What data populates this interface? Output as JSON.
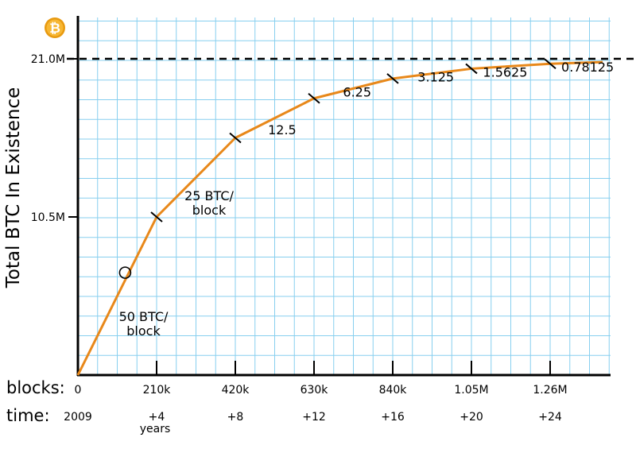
{
  "chart_data": {
    "type": "line",
    "ylabel": "Total BTC In Existence",
    "y_ticks": [
      {
        "value": 10.5,
        "label": "10.5M"
      },
      {
        "value": 21.0,
        "label": "21.0M"
      }
    ],
    "ylim": [
      0,
      22.1
    ],
    "xlim": [
      0,
      1400000
    ],
    "max_supply": 21.0,
    "x_row_label": "blocks:",
    "x_ticks": [
      {
        "value": 0,
        "label": "0"
      },
      {
        "value": 210000,
        "label": "210k"
      },
      {
        "value": 420000,
        "label": "420k"
      },
      {
        "value": 630000,
        "label": "630k"
      },
      {
        "value": 840000,
        "label": "840k"
      },
      {
        "value": 1050000,
        "label": "1.05M"
      },
      {
        "value": 1260000,
        "label": "1.26M"
      }
    ],
    "time_row_label": "time:",
    "time_ticks": [
      {
        "value": 0,
        "label": "2009",
        "sub": ""
      },
      {
        "value": 210000,
        "label": "+4",
        "sub": "years"
      },
      {
        "value": 420000,
        "label": "+8",
        "sub": ""
      },
      {
        "value": 630000,
        "label": "+12",
        "sub": ""
      },
      {
        "value": 840000,
        "label": "+16",
        "sub": ""
      },
      {
        "value": 1050000,
        "label": "+20",
        "sub": ""
      },
      {
        "value": 1260000,
        "label": "+24",
        "sub": ""
      }
    ],
    "series": [
      {
        "x": [
          0,
          210000,
          420000,
          630000,
          840000,
          1050000,
          1260000,
          1400000
        ],
        "y": [
          0,
          10.5,
          15.75,
          18.375,
          19.6875,
          20.34375,
          20.671875,
          20.78125
        ],
        "color": "#e8881a"
      }
    ],
    "reward_labels": [
      {
        "line1": "50 BTC/",
        "line2": "block",
        "x": 175000,
        "y": 3.6
      },
      {
        "line1": "25 BTC/",
        "line2": "block",
        "x": 350000,
        "y": 11.6
      },
      {
        "line1": "12.5",
        "line2": "",
        "x": 545000,
        "y": 16.0
      },
      {
        "line1": "6.25",
        "line2": "",
        "x": 745000,
        "y": 18.5
      },
      {
        "line1": "3.125",
        "line2": "",
        "x": 955000,
        "y": 19.5
      },
      {
        "line1": "1.5625",
        "line2": "",
        "x": 1140000,
        "y": 19.8
      },
      {
        "line1": "0.78125",
        "line2": "",
        "x": 1360000,
        "y": 20.15
      }
    ],
    "marker_circle": {
      "x": 126000,
      "y": 6.8
    },
    "colors": {
      "grid": "#87cfef",
      "line": "#e8881a",
      "axis": "#000000",
      "coin": "#f2a900"
    },
    "logo_icon": "bitcoin-logo-icon"
  }
}
